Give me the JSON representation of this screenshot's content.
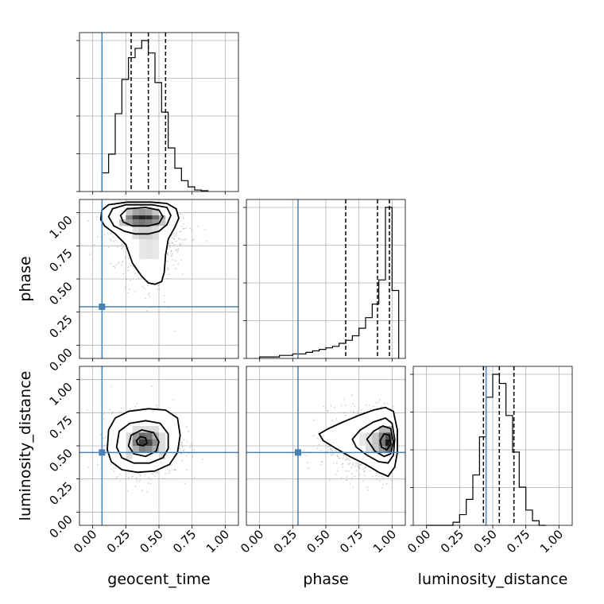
{
  "chart_data": {
    "type": "corner",
    "parameters": [
      "geocent_time",
      "phase",
      "luminosity_distance"
    ],
    "tick_values": [
      0.0,
      0.25,
      0.5,
      0.75,
      1.0
    ],
    "tick_labels": [
      "0.00",
      "0.25",
      "0.50",
      "0.75",
      "1.00"
    ],
    "axis_range": [
      -0.1,
      1.1
    ],
    "grid": true,
    "colors": {
      "truth": "#4682b4",
      "histogram": "#000000",
      "points": "#7a7a7a"
    },
    "truths": {
      "geocent_time": 0.07,
      "phase": 0.29,
      "luminosity_distance": 0.45
    },
    "quantiles": {
      "geocent_time": [
        0.29,
        0.42,
        0.55
      ],
      "phase": [
        0.65,
        0.89,
        0.98
      ],
      "luminosity_distance": [
        0.43,
        0.55,
        0.66
      ]
    },
    "histograms": {
      "geocent_time": {
        "bin_edges": [
          0.07,
          0.12,
          0.17,
          0.22,
          0.27,
          0.32,
          0.37,
          0.42,
          0.47,
          0.52,
          0.57,
          0.62,
          0.67,
          0.72,
          0.77,
          0.82,
          0.87
        ],
        "values": [
          0.12,
          0.24,
          0.5,
          0.72,
          0.86,
          0.92,
          0.97,
          0.89,
          0.7,
          0.51,
          0.28,
          0.15,
          0.07,
          0.03,
          0.01,
          0.005
        ]
      },
      "phase": {
        "bin_edges": [
          0.0,
          0.05,
          0.1,
          0.15,
          0.2,
          0.25,
          0.3,
          0.35,
          0.4,
          0.45,
          0.5,
          0.55,
          0.6,
          0.65,
          0.7,
          0.75,
          0.8,
          0.85,
          0.9,
          0.95,
          1.0,
          1.05
        ],
        "values": [
          0.01,
          0.01,
          0.01,
          0.02,
          0.02,
          0.03,
          0.03,
          0.04,
          0.05,
          0.06,
          0.07,
          0.08,
          0.1,
          0.12,
          0.15,
          0.2,
          0.27,
          0.36,
          0.52,
          1.0,
          0.45
        ]
      },
      "luminosity_distance": {
        "bin_edges": [
          0.0,
          0.05,
          0.1,
          0.15,
          0.2,
          0.25,
          0.3,
          0.35,
          0.4,
          0.45,
          0.5,
          0.55,
          0.6,
          0.65,
          0.7,
          0.75,
          0.8,
          0.85,
          0.9
        ],
        "values": [
          0.0,
          0.0,
          0.0,
          0.0,
          0.02,
          0.07,
          0.17,
          0.33,
          0.58,
          0.84,
          0.99,
          0.93,
          0.72,
          0.48,
          0.25,
          0.1,
          0.03,
          0.0
        ]
      }
    },
    "pairs": [
      {
        "x": "geocent_time",
        "y": "phase",
        "center": [
          0.42,
          0.95
        ],
        "contours": [
          [
            [
              0.06,
              0.95
            ],
            [
              0.07,
              1.02
            ],
            [
              0.12,
              1.06
            ],
            [
              0.26,
              1.08
            ],
            [
              0.44,
              1.08
            ],
            [
              0.56,
              1.07
            ],
            [
              0.63,
              1.03
            ],
            [
              0.65,
              0.96
            ],
            [
              0.62,
              0.89
            ],
            [
              0.57,
              0.8
            ],
            [
              0.55,
              0.68
            ],
            [
              0.54,
              0.55
            ],
            [
              0.52,
              0.48
            ],
            [
              0.47,
              0.46
            ],
            [
              0.42,
              0.47
            ],
            [
              0.37,
              0.52
            ],
            [
              0.3,
              0.62
            ],
            [
              0.25,
              0.76
            ],
            [
              0.17,
              0.84
            ],
            [
              0.09,
              0.9
            ]
          ],
          [
            [
              0.12,
              0.97
            ],
            [
              0.15,
              1.03
            ],
            [
              0.25,
              1.06
            ],
            [
              0.45,
              1.06
            ],
            [
              0.56,
              1.04
            ],
            [
              0.59,
              0.98
            ],
            [
              0.56,
              0.91
            ],
            [
              0.5,
              0.86
            ],
            [
              0.42,
              0.84
            ],
            [
              0.32,
              0.84
            ],
            [
              0.24,
              0.86
            ],
            [
              0.16,
              0.9
            ]
          ],
          [
            [
              0.21,
              0.98
            ],
            [
              0.26,
              1.03
            ],
            [
              0.4,
              1.04
            ],
            [
              0.5,
              1.02
            ],
            [
              0.53,
              0.97
            ],
            [
              0.5,
              0.92
            ],
            [
              0.42,
              0.9
            ],
            [
              0.3,
              0.9
            ],
            [
              0.23,
              0.93
            ]
          ]
        ],
        "density_cells": [
          [
            0.2,
            0.9,
            0.05,
            0.05,
            0.25
          ],
          [
            0.25,
            0.9,
            0.05,
            0.05,
            0.4
          ],
          [
            0.3,
            0.9,
            0.05,
            0.05,
            0.55
          ],
          [
            0.35,
            0.9,
            0.05,
            0.05,
            0.6
          ],
          [
            0.4,
            0.9,
            0.05,
            0.05,
            0.55
          ],
          [
            0.45,
            0.9,
            0.05,
            0.05,
            0.45
          ],
          [
            0.5,
            0.9,
            0.05,
            0.05,
            0.25
          ],
          [
            0.25,
            0.95,
            0.05,
            0.03,
            0.55
          ],
          [
            0.3,
            0.95,
            0.05,
            0.03,
            0.85
          ],
          [
            0.35,
            0.95,
            0.05,
            0.03,
            0.95
          ],
          [
            0.4,
            0.95,
            0.05,
            0.03,
            0.9
          ],
          [
            0.45,
            0.95,
            0.05,
            0.03,
            0.65
          ],
          [
            0.5,
            0.95,
            0.05,
            0.03,
            0.35
          ],
          [
            0.25,
            0.98,
            0.05,
            0.05,
            0.25
          ],
          [
            0.3,
            0.98,
            0.05,
            0.05,
            0.4
          ],
          [
            0.35,
            0.98,
            0.05,
            0.05,
            0.45
          ],
          [
            0.4,
            0.98,
            0.05,
            0.05,
            0.4
          ],
          [
            0.45,
            0.98,
            0.05,
            0.05,
            0.25
          ],
          [
            0.3,
            0.8,
            0.05,
            0.1,
            0.15
          ],
          [
            0.35,
            0.8,
            0.05,
            0.1,
            0.2
          ],
          [
            0.4,
            0.8,
            0.05,
            0.1,
            0.2
          ],
          [
            0.45,
            0.8,
            0.05,
            0.1,
            0.15
          ],
          [
            0.35,
            0.65,
            0.05,
            0.15,
            0.1
          ],
          [
            0.4,
            0.65,
            0.05,
            0.15,
            0.12
          ],
          [
            0.45,
            0.65,
            0.05,
            0.15,
            0.1
          ]
        ],
        "scatter_spread": [
          0.13,
          0.12
        ]
      },
      {
        "x": "geocent_time",
        "y": "luminosity_distance",
        "center": [
          0.4,
          0.52
        ],
        "contours": [
          [
            [
              0.11,
              0.47
            ],
            [
              0.12,
              0.62
            ],
            [
              0.17,
              0.71
            ],
            [
              0.27,
              0.76
            ],
            [
              0.42,
              0.78
            ],
            [
              0.55,
              0.77
            ],
            [
              0.64,
              0.71
            ],
            [
              0.66,
              0.58
            ],
            [
              0.64,
              0.45
            ],
            [
              0.58,
              0.36
            ],
            [
              0.47,
              0.31
            ],
            [
              0.34,
              0.3
            ],
            [
              0.22,
              0.32
            ],
            [
              0.14,
              0.38
            ]
          ],
          [
            [
              0.18,
              0.49
            ],
            [
              0.2,
              0.61
            ],
            [
              0.28,
              0.67
            ],
            [
              0.4,
              0.69
            ],
            [
              0.51,
              0.67
            ],
            [
              0.57,
              0.59
            ],
            [
              0.57,
              0.48
            ],
            [
              0.53,
              0.41
            ],
            [
              0.43,
              0.37
            ],
            [
              0.31,
              0.37
            ],
            [
              0.22,
              0.41
            ]
          ],
          [
            [
              0.27,
              0.5
            ],
            [
              0.29,
              0.58
            ],
            [
              0.37,
              0.62
            ],
            [
              0.46,
              0.6
            ],
            [
              0.5,
              0.53
            ],
            [
              0.48,
              0.46
            ],
            [
              0.4,
              0.42
            ],
            [
              0.31,
              0.44
            ]
          ],
          [
            [
              0.33,
              0.54
            ],
            [
              0.36,
              0.57
            ],
            [
              0.4,
              0.56
            ],
            [
              0.41,
              0.52
            ],
            [
              0.38,
              0.5
            ],
            [
              0.34,
              0.51
            ]
          ]
        ],
        "density_cells": [
          [
            0.3,
            0.45,
            0.05,
            0.05,
            0.35
          ],
          [
            0.35,
            0.45,
            0.05,
            0.05,
            0.55
          ],
          [
            0.4,
            0.45,
            0.05,
            0.05,
            0.5
          ],
          [
            0.45,
            0.45,
            0.05,
            0.05,
            0.35
          ],
          [
            0.3,
            0.5,
            0.05,
            0.05,
            0.55
          ],
          [
            0.35,
            0.5,
            0.05,
            0.05,
            0.85
          ],
          [
            0.4,
            0.5,
            0.05,
            0.05,
            0.8
          ],
          [
            0.45,
            0.5,
            0.05,
            0.05,
            0.5
          ],
          [
            0.3,
            0.55,
            0.05,
            0.05,
            0.45
          ],
          [
            0.35,
            0.55,
            0.05,
            0.05,
            0.65
          ],
          [
            0.4,
            0.55,
            0.05,
            0.05,
            0.6
          ],
          [
            0.45,
            0.55,
            0.05,
            0.05,
            0.35
          ],
          [
            0.25,
            0.4,
            0.05,
            0.2,
            0.15
          ],
          [
            0.5,
            0.4,
            0.05,
            0.2,
            0.15
          ],
          [
            0.3,
            0.6,
            0.2,
            0.05,
            0.15
          ]
        ],
        "scatter_spread": [
          0.13,
          0.12
        ]
      },
      {
        "x": "phase",
        "y": "luminosity_distance",
        "center": [
          0.95,
          0.52
        ],
        "contours": [
          [
            [
              0.45,
              0.59
            ],
            [
              0.52,
              0.63
            ],
            [
              0.63,
              0.68
            ],
            [
              0.75,
              0.73
            ],
            [
              0.86,
              0.77
            ],
            [
              0.95,
              0.79
            ],
            [
              1.01,
              0.76
            ],
            [
              1.04,
              0.62
            ],
            [
              1.04,
              0.45
            ],
            [
              1.02,
              0.34
            ],
            [
              0.97,
              0.27
            ],
            [
              0.9,
              0.3
            ],
            [
              0.8,
              0.36
            ],
            [
              0.68,
              0.42
            ],
            [
              0.56,
              0.49
            ],
            [
              0.48,
              0.54
            ]
          ],
          [
            [
              0.7,
              0.55
            ],
            [
              0.76,
              0.62
            ],
            [
              0.86,
              0.68
            ],
            [
              0.95,
              0.71
            ],
            [
              1.0,
              0.67
            ],
            [
              1.02,
              0.55
            ],
            [
              1.01,
              0.43
            ],
            [
              0.97,
              0.37
            ],
            [
              0.9,
              0.38
            ],
            [
              0.81,
              0.43
            ],
            [
              0.73,
              0.49
            ]
          ],
          [
            [
              0.81,
              0.55
            ],
            [
              0.86,
              0.61
            ],
            [
              0.93,
              0.65
            ],
            [
              0.99,
              0.63
            ],
            [
              1.01,
              0.53
            ],
            [
              0.99,
              0.44
            ],
            [
              0.94,
              0.42
            ],
            [
              0.87,
              0.46
            ]
          ],
          [
            [
              0.91,
              0.54
            ],
            [
              0.94,
              0.59
            ],
            [
              0.98,
              0.58
            ],
            [
              0.99,
              0.51
            ],
            [
              0.96,
              0.47
            ],
            [
              0.92,
              0.49
            ]
          ]
        ],
        "density_cells": [
          [
            0.9,
            0.45,
            0.05,
            0.05,
            0.45
          ],
          [
            0.95,
            0.45,
            0.05,
            0.05,
            0.65
          ],
          [
            0.9,
            0.5,
            0.05,
            0.05,
            0.6
          ],
          [
            0.95,
            0.5,
            0.03,
            0.05,
            1.0
          ],
          [
            0.98,
            0.5,
            0.02,
            0.05,
            0.7
          ],
          [
            0.9,
            0.55,
            0.05,
            0.05,
            0.55
          ],
          [
            0.95,
            0.55,
            0.05,
            0.05,
            0.75
          ],
          [
            0.85,
            0.45,
            0.05,
            0.15,
            0.25
          ],
          [
            0.8,
            0.45,
            0.05,
            0.15,
            0.15
          ],
          [
            0.9,
            0.6,
            0.1,
            0.05,
            0.3
          ],
          [
            0.75,
            0.5,
            0.05,
            0.1,
            0.1
          ]
        ],
        "scatter_spread": [
          0.1,
          0.12
        ]
      }
    ]
  }
}
